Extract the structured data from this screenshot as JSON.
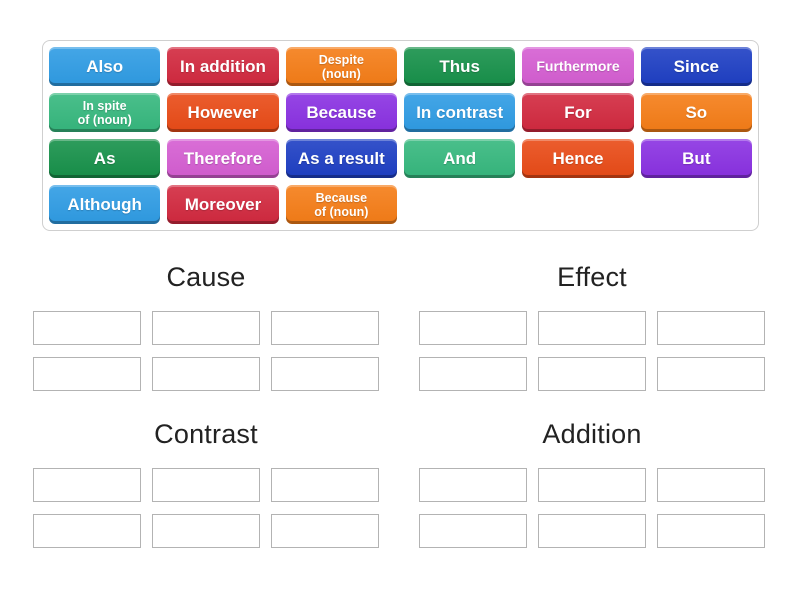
{
  "tray": {
    "tiles": [
      {
        "label": "Also",
        "color": "#2f9ce4"
      },
      {
        "label": "In addition",
        "color": "#d2293f"
      },
      {
        "label": "Despite\n(noun)",
        "color": "#f57d17"
      },
      {
        "label": "Thus",
        "color": "#17914a"
      },
      {
        "label": "Furthermore",
        "color": "#d55ed2"
      },
      {
        "label": "Since",
        "color": "#1e3fc4"
      },
      {
        "label": "In spite\nof (noun)",
        "color": "#36b87e"
      },
      {
        "label": "However",
        "color": "#e94b17"
      },
      {
        "label": "Because",
        "color": "#8a31e2"
      },
      {
        "label": "In contrast",
        "color": "#2f9ce4"
      },
      {
        "label": "For",
        "color": "#d2293f"
      },
      {
        "label": "So",
        "color": "#f57d17"
      },
      {
        "label": "As",
        "color": "#17914a"
      },
      {
        "label": "Therefore",
        "color": "#d55ed2"
      },
      {
        "label": "As a result",
        "color": "#1e3fc4"
      },
      {
        "label": "And",
        "color": "#36b87e"
      },
      {
        "label": "Hence",
        "color": "#e94b17"
      },
      {
        "label": "But",
        "color": "#8a31e2"
      },
      {
        "label": "Although",
        "color": "#2f9ce4"
      },
      {
        "label": "Moreover",
        "color": "#d2293f"
      },
      {
        "label": "Because\nof (noun)",
        "color": "#f57d17"
      }
    ]
  },
  "groups": [
    {
      "title": "Cause",
      "slot_count": 6
    },
    {
      "title": "Effect",
      "slot_count": 6
    },
    {
      "title": "Contrast",
      "slot_count": 6
    },
    {
      "title": "Addition",
      "slot_count": 6
    }
  ],
  "ui_colors": {
    "page_background": "#ffffff",
    "tray_border": "#cfcfcf",
    "slot_border": "#b3b3b3",
    "heading_text": "#222222",
    "tile_text": "#ffffff"
  }
}
